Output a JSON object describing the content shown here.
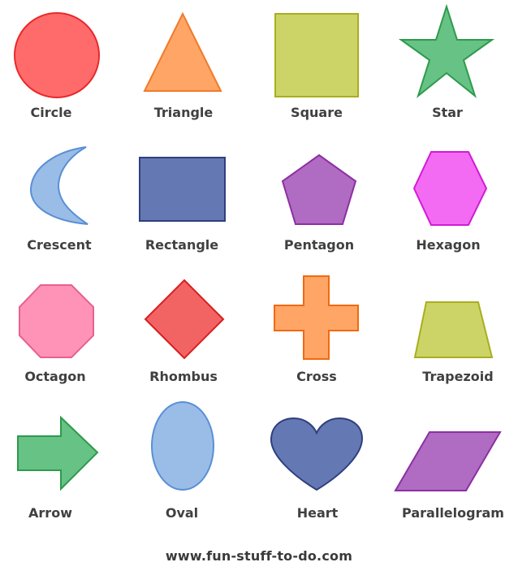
{
  "shapes": [
    {
      "label": "Circle",
      "fill": "#ff6b6b",
      "stroke": "#e8292c"
    },
    {
      "label": "Triangle",
      "fill": "#ffa566",
      "stroke": "#f07a2a"
    },
    {
      "label": "Square",
      "fill": "#ccd467",
      "stroke": "#a9ae1f"
    },
    {
      "label": "Star",
      "fill": "#66c285",
      "stroke": "#2e9a4c"
    },
    {
      "label": "Crescent",
      "fill": "#99bde6",
      "stroke": "#5a8fd6"
    },
    {
      "label": "Rectangle",
      "fill": "#6478b4",
      "stroke": "#2f3f7d"
    },
    {
      "label": "Pentagon",
      "fill": "#b06bc2",
      "stroke": "#8d2fa3"
    },
    {
      "label": "Hexagon",
      "fill": "#f26bf2",
      "stroke": "#d21bd6"
    },
    {
      "label": "Octagon",
      "fill": "#ff93b7",
      "stroke": "#e8608e"
    },
    {
      "label": "Rhombus",
      "fill": "#f26464",
      "stroke": "#d81f1f"
    },
    {
      "label": "Cross",
      "fill": "#ffa566",
      "stroke": "#f06a10"
    },
    {
      "label": "Trapezoid",
      "fill": "#ccd467",
      "stroke": "#a9ae1f"
    },
    {
      "label": "Arrow",
      "fill": "#66c285",
      "stroke": "#2e9a4c"
    },
    {
      "label": "Oval",
      "fill": "#99bde6",
      "stroke": "#5a8fd6"
    },
    {
      "label": "Heart",
      "fill": "#6478b4",
      "stroke": "#2f3f7d"
    },
    {
      "label": "Parallelogram",
      "fill": "#b06bc2",
      "stroke": "#8d2fa3"
    }
  ],
  "footer": "www.fun-stuff-to-do.com"
}
